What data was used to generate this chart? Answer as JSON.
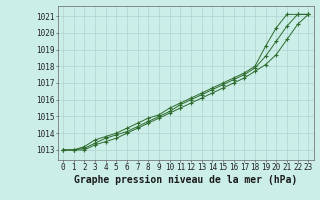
{
  "background_color": "#cceee8",
  "plot_bg_color": "#cceee8",
  "grid_color": "#aacccc",
  "line_color": "#2d6b2d",
  "marker_color": "#2d6b2d",
  "title": "Graphe pression niveau de la mer (hPa)",
  "xlim": [
    -0.5,
    23.5
  ],
  "ylim": [
    1012.4,
    1021.6
  ],
  "yticks": [
    1013,
    1014,
    1015,
    1016,
    1017,
    1018,
    1019,
    1020,
    1021
  ],
  "xticks": [
    0,
    1,
    2,
    3,
    4,
    5,
    6,
    7,
    8,
    9,
    10,
    11,
    12,
    13,
    14,
    15,
    16,
    17,
    18,
    19,
    20,
    21,
    22,
    23
  ],
  "hours": [
    0,
    1,
    2,
    3,
    4,
    5,
    6,
    7,
    8,
    9,
    10,
    11,
    12,
    13,
    14,
    15,
    16,
    17,
    18,
    19,
    20,
    21,
    22,
    23
  ],
  "line1": [
    1013.0,
    1013.0,
    1013.2,
    1013.6,
    1013.8,
    1014.0,
    1014.3,
    1014.6,
    1014.9,
    1015.1,
    1015.5,
    1015.8,
    1016.1,
    1016.4,
    1016.7,
    1017.0,
    1017.3,
    1017.6,
    1018.0,
    1019.2,
    1020.3,
    1021.1,
    1021.1,
    1021.1
  ],
  "line2": [
    1013.0,
    1013.0,
    1013.1,
    1013.4,
    1013.7,
    1013.9,
    1014.1,
    1014.4,
    1014.7,
    1015.0,
    1015.3,
    1015.7,
    1016.0,
    1016.3,
    1016.6,
    1016.9,
    1017.2,
    1017.5,
    1017.9,
    1018.6,
    1019.5,
    1020.4,
    1021.1,
    1021.1
  ],
  "line3": [
    1013.0,
    1013.0,
    1013.0,
    1013.3,
    1013.5,
    1013.7,
    1014.0,
    1014.3,
    1014.6,
    1014.9,
    1015.2,
    1015.5,
    1015.8,
    1016.1,
    1016.4,
    1016.7,
    1017.0,
    1017.3,
    1017.7,
    1018.1,
    1018.7,
    1019.6,
    1020.5,
    1021.1
  ],
  "title_fontsize": 7,
  "tick_fontsize": 5.5
}
